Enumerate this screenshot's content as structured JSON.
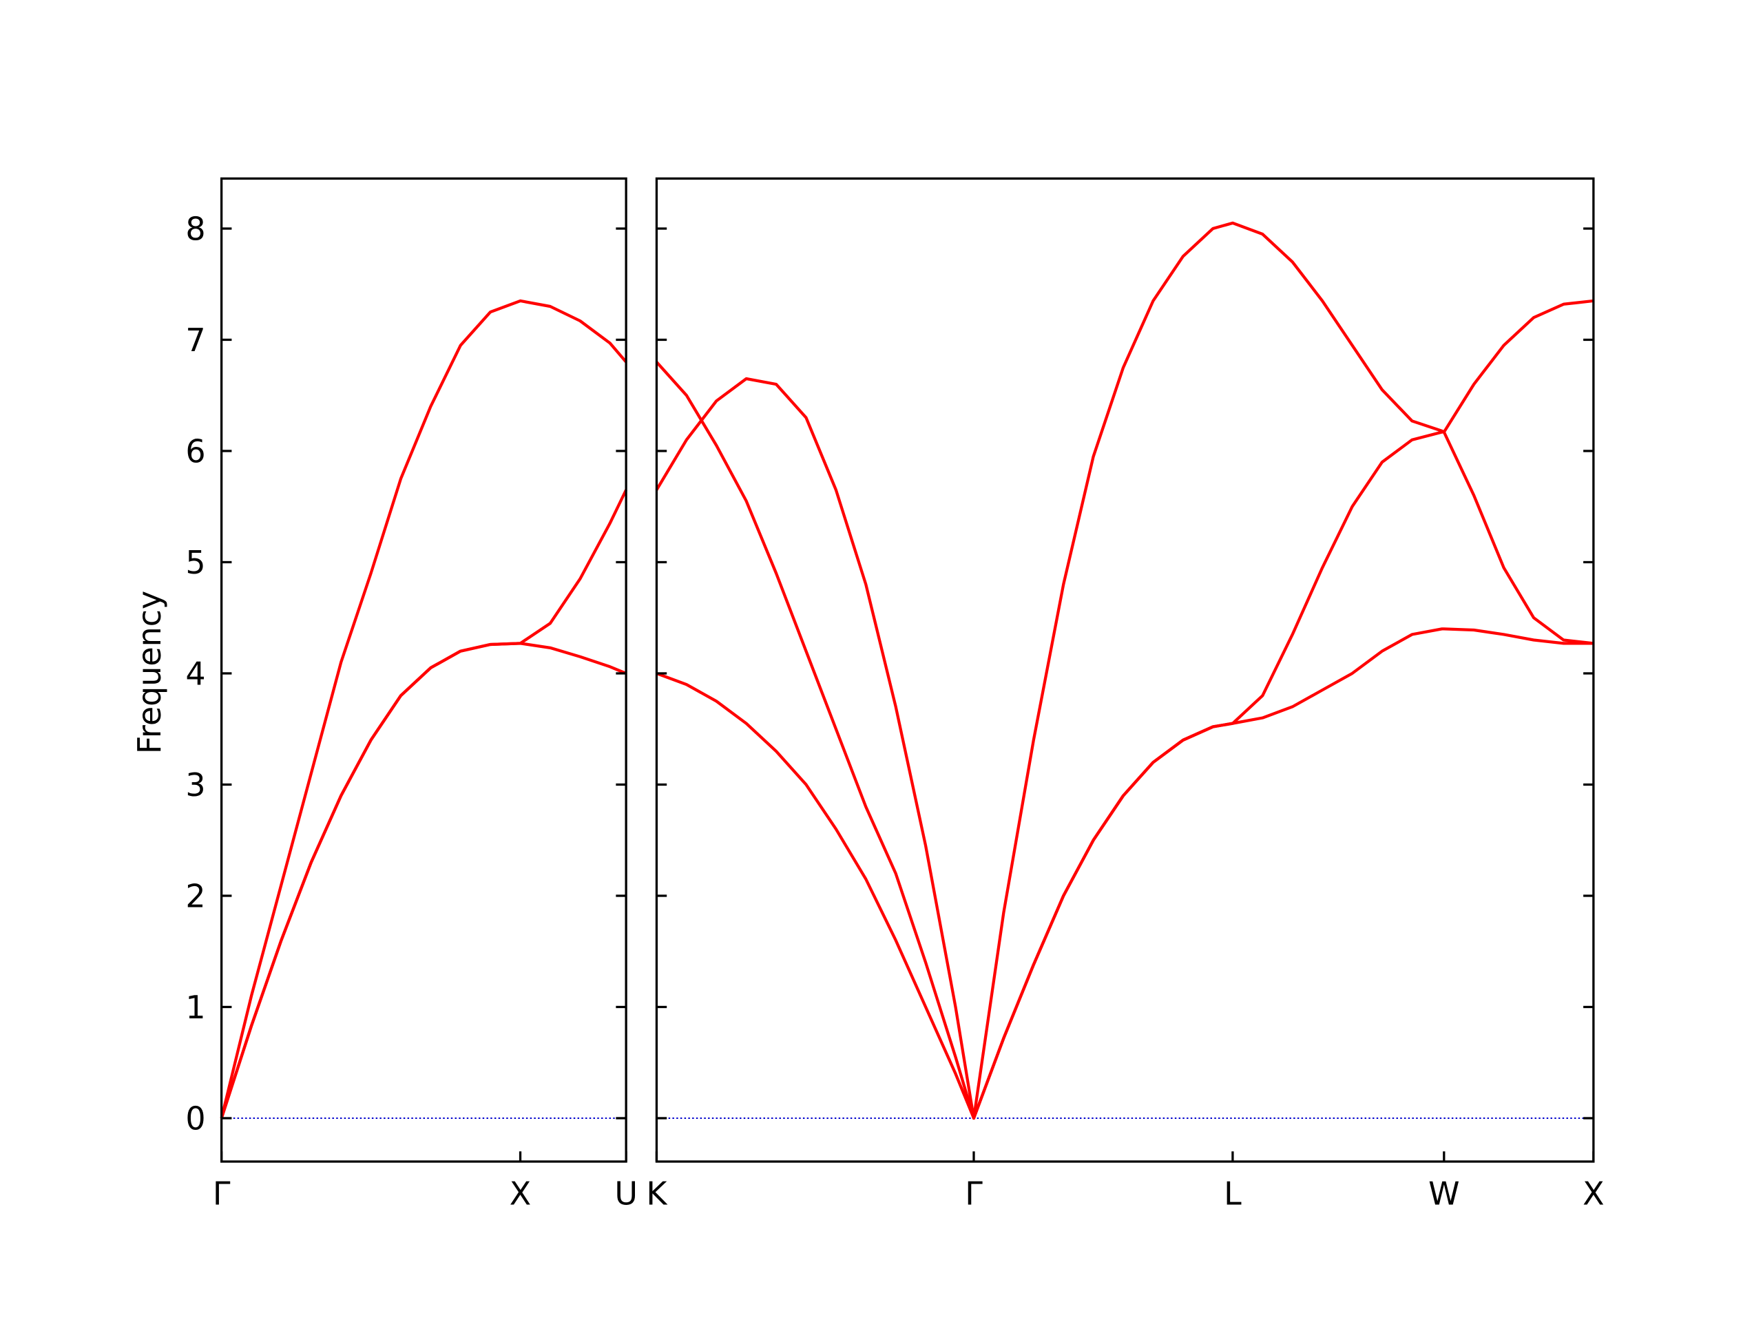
{
  "chart_data": [
    {
      "type": "line",
      "ylabel": "Frequency",
      "x": [
        0,
        0.1,
        0.2,
        0.3,
        0.4,
        0.5,
        0.6,
        0.7,
        0.8,
        0.9,
        1.0,
        1.1,
        1.2,
        1.3,
        1.354
      ],
      "series": [
        {
          "color": "#ff0000",
          "values": [
            0,
            0.83,
            1.6,
            2.3,
            2.9,
            3.4,
            3.8,
            4.05,
            4.2,
            4.26,
            4.27,
            4.23,
            4.15,
            4.06,
            4.0
          ]
        },
        {
          "color": "#ff0000",
          "values": [
            0,
            0.83,
            1.6,
            2.3,
            2.9,
            3.4,
            3.8,
            4.05,
            4.2,
            4.26,
            4.27,
            4.45,
            4.85,
            5.35,
            5.65
          ]
        },
        {
          "color": "#ff0000",
          "values": [
            0,
            1.1,
            2.1,
            3.1,
            4.1,
            4.9,
            5.75,
            6.4,
            6.95,
            7.25,
            7.35,
            7.3,
            7.17,
            6.97,
            6.8
          ]
        }
      ],
      "xlim": [
        0,
        1.354
      ],
      "xticks": [
        {
          "value": 0,
          "label": "Γ"
        },
        {
          "value": 1.0,
          "label": "X"
        },
        {
          "value": 1.354,
          "label": "U"
        }
      ],
      "ylim": [
        -0.39,
        8.45
      ],
      "yticks": [
        0,
        1,
        2,
        3,
        4,
        5,
        6,
        7,
        8
      ],
      "hline": {
        "y": 0,
        "color": "#0000cc"
      }
    },
    {
      "type": "line",
      "x": [
        0,
        0.1,
        0.2,
        0.3,
        0.4,
        0.5,
        0.6,
        0.7,
        0.8,
        0.9,
        1.0,
        1.061,
        1.161,
        1.261,
        1.361,
        1.461,
        1.561,
        1.661,
        1.761,
        1.861,
        1.927,
        2.027,
        2.127,
        2.227,
        2.327,
        2.427,
        2.527,
        2.627,
        2.634,
        2.734,
        2.834,
        2.934,
        3.034,
        3.134
      ],
      "series": [
        {
          "color": "#ff0000",
          "values": [
            4.0,
            3.9,
            3.75,
            3.55,
            3.3,
            3.0,
            2.6,
            2.15,
            1.6,
            1.0,
            0.4,
            0,
            0.72,
            1.38,
            2.0,
            2.5,
            2.9,
            3.2,
            3.4,
            3.52,
            3.55,
            3.6,
            3.7,
            3.85,
            4.0,
            4.2,
            4.35,
            4.4,
            4.4,
            4.39,
            4.35,
            4.3,
            4.27,
            4.27
          ]
        },
        {
          "color": "#ff0000",
          "values": [
            6.8,
            6.5,
            6.05,
            5.55,
            4.9,
            4.2,
            3.5,
            2.8,
            2.2,
            1.4,
            0.55,
            0,
            0.72,
            1.38,
            2.0,
            2.5,
            2.9,
            3.2,
            3.4,
            3.52,
            3.55,
            3.8,
            4.35,
            4.95,
            5.5,
            5.9,
            6.1,
            6.17,
            6.17,
            5.6,
            4.95,
            4.5,
            4.3,
            4.27
          ]
        },
        {
          "color": "#ff0000",
          "values": [
            5.65,
            6.1,
            6.45,
            6.65,
            6.6,
            6.3,
            5.65,
            4.8,
            3.7,
            2.45,
            1.0,
            0,
            1.85,
            3.4,
            4.8,
            5.95,
            6.75,
            7.35,
            7.75,
            8.0,
            8.05,
            7.95,
            7.7,
            7.35,
            6.95,
            6.55,
            6.27,
            6.18,
            6.17,
            6.6,
            6.95,
            7.2,
            7.32,
            7.35
          ]
        }
      ],
      "xlim": [
        0,
        3.134
      ],
      "xticks": [
        {
          "value": 0,
          "label": "K"
        },
        {
          "value": 1.061,
          "label": "Γ"
        },
        {
          "value": 1.927,
          "label": "L"
        },
        {
          "value": 2.634,
          "label": "W"
        },
        {
          "value": 3.134,
          "label": "X"
        }
      ],
      "hline": {
        "y": 0,
        "color": "#0000cc"
      }
    }
  ]
}
